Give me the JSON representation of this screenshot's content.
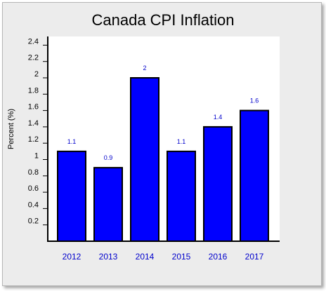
{
  "chart_data": {
    "type": "bar",
    "title": "Canada CPI Inflation",
    "xlabel": "",
    "ylabel": "Percent (%)",
    "categories": [
      "2012",
      "2013",
      "2014",
      "2015",
      "2016",
      "2017"
    ],
    "values": [
      1.1,
      0.9,
      2,
      1.1,
      1.4,
      1.6
    ],
    "data_labels": [
      "1.1",
      "0.9",
      "2",
      "1.1",
      "1.4",
      "1.6"
    ],
    "yticks": [
      "0.2",
      "0.4",
      "0.6",
      "0.8",
      "1",
      "1.2",
      "1.4",
      "1.6",
      "1.8",
      "2",
      "2.2",
      "2.4"
    ],
    "ylim": [
      0,
      2.4
    ],
    "grid": false,
    "legend": "none",
    "colors": {
      "bar_fill": "#0000ff",
      "bar_stroke": "#000000",
      "data_label": "#0000cc",
      "category_label": "#0000cc",
      "plot_background": "#ffffff",
      "frame_background": "#ececec"
    }
  }
}
